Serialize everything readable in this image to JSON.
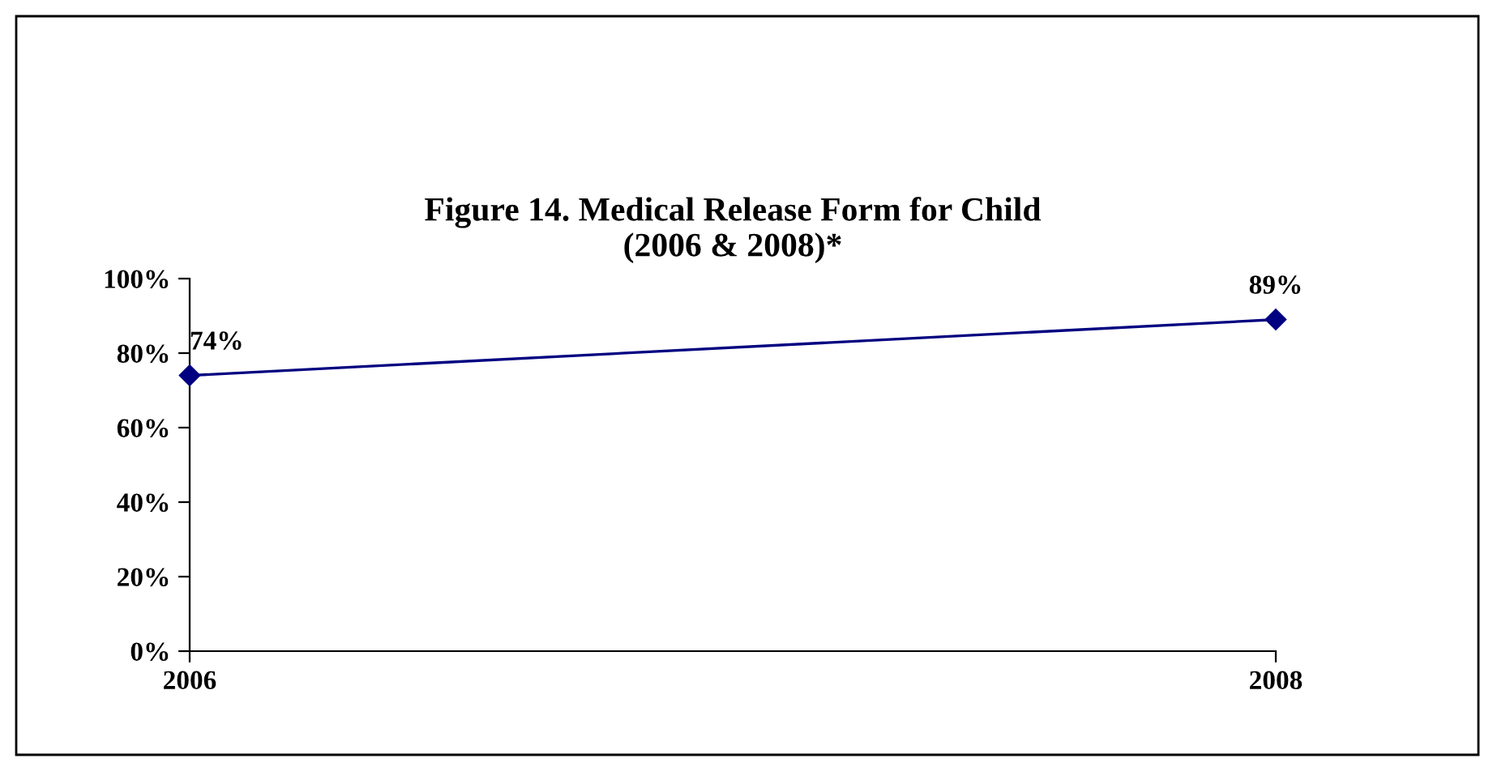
{
  "chart_data": {
    "type": "line",
    "title": "Figure 14. Medical Release Form for Child\n(2006 & 2008)*",
    "categories": [
      "2006",
      "2008"
    ],
    "series": [
      {
        "color": "#000080",
        "values": [
          74,
          89
        ],
        "value_labels": [
          "74%",
          "89%"
        ]
      }
    ],
    "ylim": [
      0,
      100
    ],
    "yticks": [
      {
        "value": 0,
        "label": "0%"
      },
      {
        "value": 20,
        "label": "20%"
      },
      {
        "value": 40,
        "label": "40%"
      },
      {
        "value": 60,
        "label": "60%"
      },
      {
        "value": 80,
        "label": "80%"
      },
      {
        "value": 100,
        "label": "100%"
      }
    ],
    "marker": "diamond",
    "line_style": "solid",
    "grid": false,
    "legend": false
  }
}
